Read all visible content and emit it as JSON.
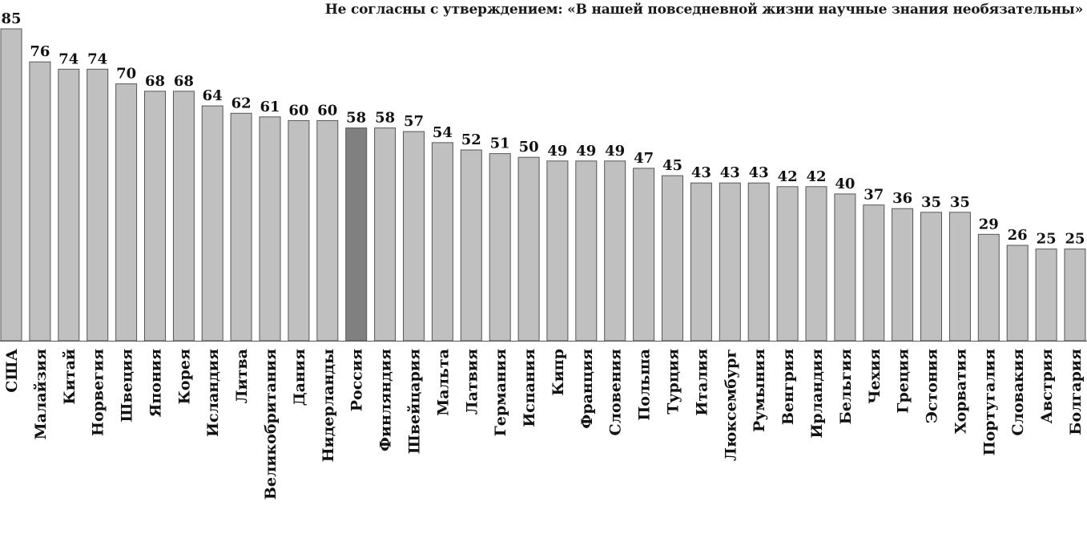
{
  "chart_data": {
    "type": "bar",
    "title": "Не согласны с утверждением: «В нашей повседневной жизни научные знания необязательны»",
    "xlabel": "",
    "ylabel": "",
    "ylim": [
      0,
      85
    ],
    "grid": false,
    "legend": "none",
    "categories": [
      "США",
      "Малайзия",
      "Китай",
      "Норвегия",
      "Швеция",
      "Япония",
      "Корея",
      "Исландия",
      "Литва",
      "Великобритания",
      "Дания",
      "Нидерланды",
      "Россия",
      "Финляндия",
      "Швейцария",
      "Мальта",
      "Латвия",
      "Германия",
      "Испания",
      "Кипр",
      "Франция",
      "Словения",
      "Польша",
      "Турция",
      "Италия",
      "Люксембург",
      "Румыния",
      "Венгрия",
      "Ирландия",
      "Бельгия",
      "Чехия",
      "Греция",
      "Эстония",
      "Хорватия",
      "Португалия",
      "Словакия",
      "Австрия",
      "Болгария"
    ],
    "values": [
      85,
      76,
      74,
      74,
      70,
      68,
      68,
      64,
      62,
      61,
      60,
      60,
      58,
      58,
      57,
      54,
      52,
      51,
      50,
      49,
      49,
      49,
      47,
      45,
      43,
      43,
      43,
      42,
      42,
      40,
      37,
      36,
      35,
      35,
      29,
      26,
      25,
      25
    ],
    "highlight_category": "Россия",
    "colors": {
      "bar": "#c0c0c0",
      "highlight": "#808080",
      "bar_edge": "#555555"
    }
  }
}
